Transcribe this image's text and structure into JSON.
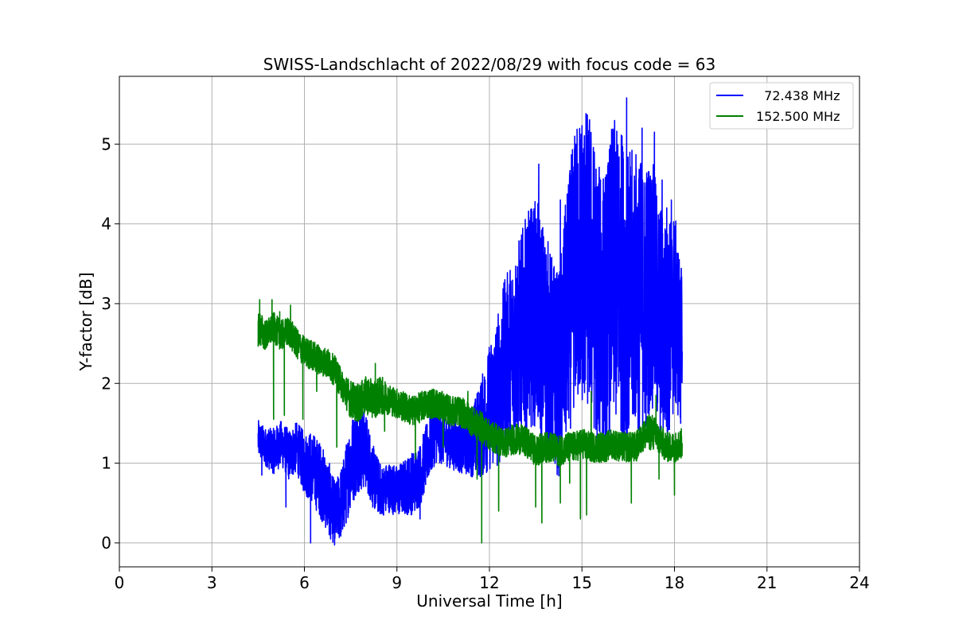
{
  "chart_data": {
    "type": "line",
    "title": "SWISS-Landschlacht of 2022/08/29 with focus code = 63",
    "xlabel": "Universal Time [h]",
    "ylabel": "Y-factor [dB]",
    "xlim": [
      0,
      24
    ],
    "ylim": [
      -0.3,
      5.85
    ],
    "xticks": [
      0,
      3,
      6,
      9,
      12,
      15,
      18,
      21,
      24
    ],
    "yticks": [
      0,
      1,
      2,
      3,
      4,
      5
    ],
    "grid": true,
    "legend_position": "top-right",
    "series": [
      {
        "name": "  72.438 MHz",
        "color": "#0000ff",
        "x": [
          4.5,
          4.75,
          5.0,
          5.25,
          5.5,
          5.75,
          6.0,
          6.25,
          6.5,
          6.75,
          7.0,
          7.25,
          7.5,
          7.75,
          8.0,
          8.25,
          8.5,
          8.75,
          9.0,
          9.25,
          9.5,
          9.75,
          10.0,
          10.25,
          10.5,
          10.75,
          11.0,
          11.25,
          11.5,
          11.75,
          12.0,
          12.25,
          12.5,
          12.75,
          13.0,
          13.25,
          13.5,
          13.75,
          14.0,
          14.25,
          14.5,
          14.75,
          15.0,
          15.25,
          15.5,
          15.75,
          16.0,
          16.25,
          16.5,
          16.75,
          17.0,
          17.25,
          17.5,
          17.75,
          18.0,
          18.25
        ],
        "y": [
          1.3,
          1.2,
          1.15,
          1.25,
          1.1,
          1.2,
          1.0,
          0.95,
          0.8,
          0.6,
          0.35,
          0.55,
          1.0,
          1.2,
          1.15,
          0.8,
          0.65,
          0.7,
          0.65,
          0.7,
          0.75,
          0.85,
          1.15,
          1.4,
          1.3,
          1.25,
          1.2,
          1.25,
          1.3,
          1.45,
          1.7,
          1.9,
          2.2,
          2.4,
          2.6,
          2.8,
          2.9,
          2.6,
          2.3,
          2.1,
          2.8,
          3.4,
          3.6,
          3.5,
          3.0,
          2.9,
          3.4,
          3.3,
          3.0,
          3.2,
          3.0,
          3.3,
          2.8,
          2.6,
          2.9,
          2.4
        ],
        "noise": [
          0.15,
          0.15,
          0.18,
          0.18,
          0.2,
          0.2,
          0.25,
          0.28,
          0.3,
          0.3,
          0.25,
          0.3,
          0.35,
          0.35,
          0.3,
          0.25,
          0.2,
          0.2,
          0.2,
          0.22,
          0.25,
          0.25,
          0.25,
          0.25,
          0.2,
          0.2,
          0.2,
          0.25,
          0.3,
          0.4,
          0.5,
          0.6,
          0.7,
          0.75,
          0.8,
          0.85,
          0.9,
          0.9,
          0.85,
          0.8,
          1.0,
          1.1,
          1.2,
          1.2,
          1.1,
          1.1,
          1.2,
          1.2,
          1.2,
          1.1,
          1.1,
          1.0,
          0.95,
          0.9,
          0.8,
          0.6
        ],
        "peaks": [
          [
            4.62,
            0.85
          ],
          [
            5.4,
            0.45
          ],
          [
            6.2,
            0.0
          ],
          [
            6.85,
            0.05
          ],
          [
            7.1,
            0.2
          ],
          [
            8.4,
            0.6
          ],
          [
            9.5,
            0.5
          ],
          [
            9.75,
            0.3
          ],
          [
            10.9,
            1.8
          ],
          [
            12.5,
            3.3
          ],
          [
            13.2,
            3.9
          ],
          [
            13.6,
            4.75
          ],
          [
            14.3,
            4.3
          ],
          [
            14.8,
            5.0
          ],
          [
            15.2,
            5.1
          ],
          [
            15.4,
            4.9
          ],
          [
            15.6,
            4.55
          ],
          [
            15.9,
            4.2
          ],
          [
            16.1,
            4.9
          ],
          [
            16.3,
            5.1
          ],
          [
            16.45,
            5.58
          ],
          [
            16.7,
            4.6
          ],
          [
            16.95,
            5.2
          ],
          [
            17.1,
            4.4
          ],
          [
            17.35,
            5.15
          ],
          [
            17.6,
            4.55
          ],
          [
            17.75,
            4.2
          ],
          [
            17.9,
            4.3
          ],
          [
            18.1,
            3.2
          ],
          [
            18.2,
            1.5
          ]
        ]
      },
      {
        "name": "152.500 MHz",
        "color": "#008000",
        "x": [
          4.5,
          4.75,
          5.0,
          5.25,
          5.5,
          5.75,
          6.0,
          6.25,
          6.5,
          6.75,
          7.0,
          7.25,
          7.5,
          7.75,
          8.0,
          8.25,
          8.5,
          8.75,
          9.0,
          9.25,
          9.5,
          9.75,
          10.0,
          10.25,
          10.5,
          10.75,
          11.0,
          11.25,
          11.5,
          11.75,
          12.0,
          12.25,
          12.5,
          12.75,
          13.0,
          13.25,
          13.5,
          13.75,
          14.0,
          14.25,
          14.5,
          14.75,
          15.0,
          15.25,
          15.5,
          15.75,
          16.0,
          16.25,
          16.5,
          16.75,
          17.0,
          17.25,
          17.5,
          17.75,
          18.0,
          18.25
        ],
        "y": [
          2.7,
          2.6,
          2.7,
          2.6,
          2.65,
          2.5,
          2.4,
          2.35,
          2.3,
          2.25,
          2.15,
          1.95,
          1.8,
          1.75,
          1.85,
          1.8,
          1.85,
          1.8,
          1.75,
          1.7,
          1.65,
          1.7,
          1.75,
          1.75,
          1.7,
          1.65,
          1.65,
          1.6,
          1.5,
          1.45,
          1.35,
          1.3,
          1.25,
          1.3,
          1.3,
          1.25,
          1.15,
          1.2,
          1.2,
          1.15,
          1.2,
          1.2,
          1.25,
          1.2,
          1.2,
          1.2,
          1.25,
          1.2,
          1.2,
          1.2,
          1.35,
          1.4,
          1.3,
          1.2,
          1.2,
          1.25
        ],
        "noise": [
          0.15,
          0.12,
          0.12,
          0.12,
          0.12,
          0.12,
          0.12,
          0.12,
          0.12,
          0.12,
          0.12,
          0.12,
          0.15,
          0.15,
          0.15,
          0.15,
          0.15,
          0.12,
          0.12,
          0.12,
          0.12,
          0.12,
          0.12,
          0.12,
          0.12,
          0.12,
          0.12,
          0.12,
          0.12,
          0.12,
          0.12,
          0.12,
          0.12,
          0.12,
          0.12,
          0.12,
          0.12,
          0.12,
          0.12,
          0.12,
          0.12,
          0.12,
          0.12,
          0.12,
          0.12,
          0.12,
          0.12,
          0.12,
          0.12,
          0.12,
          0.12,
          0.15,
          0.12,
          0.12,
          0.12,
          0.12
        ],
        "peaks": [
          [
            4.55,
            3.05
          ],
          [
            4.95,
            3.05
          ],
          [
            5.2,
            2.9
          ],
          [
            5.55,
            2.98
          ],
          [
            5.0,
            1.55
          ],
          [
            5.35,
            1.6
          ],
          [
            5.95,
            1.55
          ],
          [
            6.4,
            1.9
          ],
          [
            7.05,
            1.2
          ],
          [
            8.3,
            2.25
          ],
          [
            8.6,
            1.4
          ],
          [
            9.6,
            1.05
          ],
          [
            10.1,
            1.9
          ],
          [
            10.5,
            1.2
          ],
          [
            11.3,
            1.9
          ],
          [
            11.6,
            0.8
          ],
          [
            11.75,
            0.0
          ],
          [
            12.3,
            0.4
          ],
          [
            13.5,
            0.45
          ],
          [
            13.7,
            0.25
          ],
          [
            14.3,
            0.5
          ],
          [
            14.6,
            0.75
          ],
          [
            14.95,
            0.3
          ],
          [
            15.15,
            0.35
          ],
          [
            15.3,
            1.9
          ],
          [
            16.6,
            0.5
          ],
          [
            17.4,
            1.85
          ],
          [
            17.5,
            0.8
          ],
          [
            18.0,
            0.6
          ]
        ]
      }
    ]
  }
}
